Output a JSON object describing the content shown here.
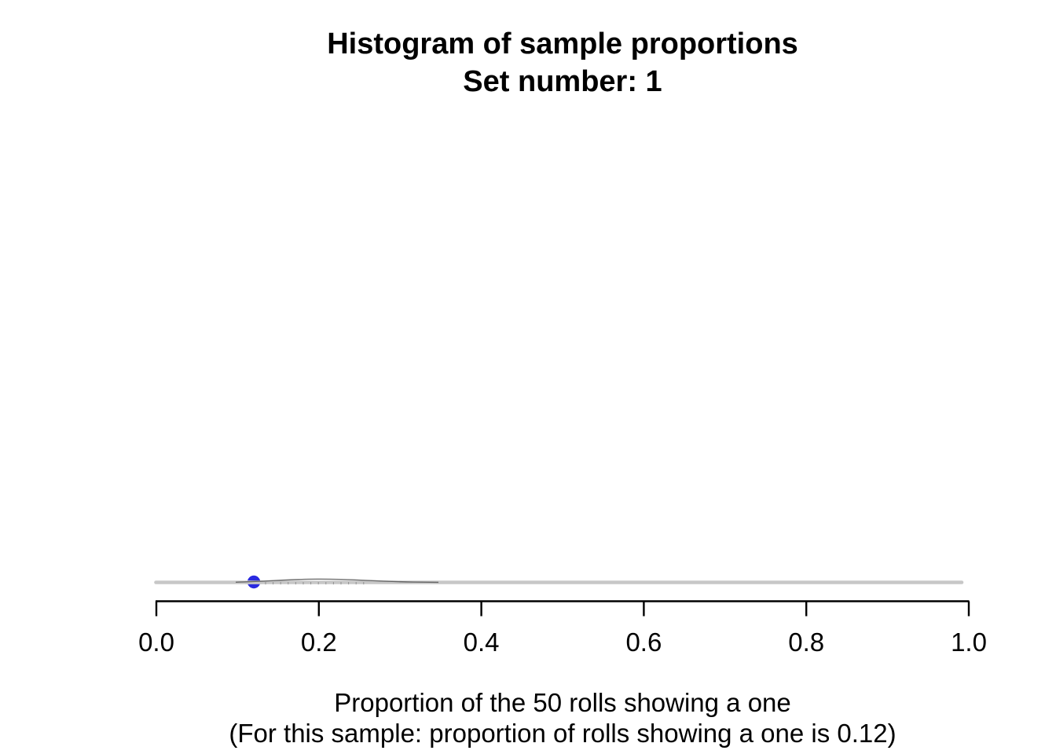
{
  "page": {
    "background": "#ffffff"
  },
  "chart_data": {
    "type": "scatter",
    "title": "Histogram of sample proportions",
    "subtitle": "Set number: 1",
    "set_number": 1,
    "xlabel": "Proportion of the 50 rolls showing a one",
    "xlabel_note": "(For this sample: proportion of rolls showing a one is 0.12)",
    "n_rolls": 50,
    "sample_proportion": 0.12,
    "x": [
      0.12
    ],
    "y": [
      0
    ],
    "xlim": [
      0,
      1
    ],
    "x_tick_values": [
      0,
      0.2,
      0.4,
      0.6,
      0.8,
      1.0
    ],
    "x_tick_labels": [
      "0.0",
      "0.2",
      "0.4",
      "0.6",
      "0.8",
      "1.0"
    ],
    "grid": false,
    "legend": "none",
    "colors": {
      "point": "#2a2ae0",
      "baseline": "#c7c7c7",
      "axis": "#000000",
      "density_outline": "#4d4d4d"
    }
  }
}
